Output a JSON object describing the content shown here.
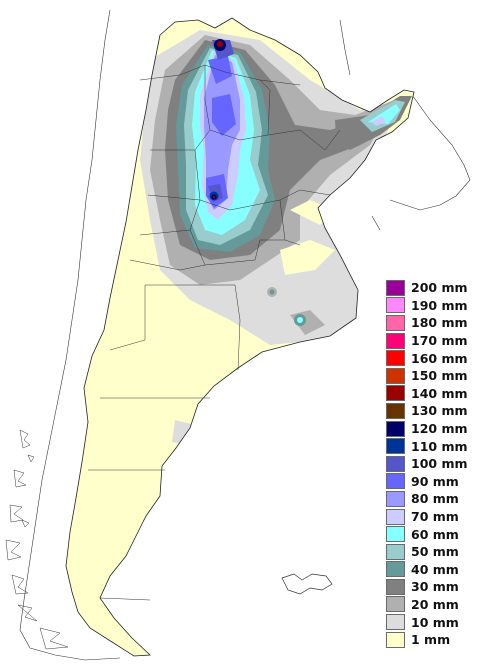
{
  "legend": {
    "items": [
      {
        "label": "200 mm",
        "color": "#990099"
      },
      {
        "label": "190 mm",
        "color": "#ff88ff"
      },
      {
        "label": "180 mm",
        "color": "#ff66aa"
      },
      {
        "label": "170 mm",
        "color": "#ff0077"
      },
      {
        "label": "160 mm",
        "color": "#ff0000"
      },
      {
        "label": "150 mm",
        "color": "#cc3300"
      },
      {
        "label": "140 mm",
        "color": "#990000"
      },
      {
        "label": "130 mm",
        "color": "#663300"
      },
      {
        "label": "120 mm",
        "color": "#000066"
      },
      {
        "label": "110 mm",
        "color": "#003399"
      },
      {
        "label": "100 mm",
        "color": "#5555cc"
      },
      {
        "label": "90 mm",
        "color": "#6666ff"
      },
      {
        "label": "80 mm",
        "color": "#9999ff"
      },
      {
        "label": "70 mm",
        "color": "#ccccff"
      },
      {
        "label": "60 mm",
        "color": "#88ffff"
      },
      {
        "label": "50 mm",
        "color": "#99cccc"
      },
      {
        "label": "40 mm",
        "color": "#669999"
      },
      {
        "label": "30 mm",
        "color": "#808080"
      },
      {
        "label": "20 mm",
        "color": "#b0b0b0"
      },
      {
        "label": "10 mm",
        "color": "#dddddd"
      },
      {
        "label": "1 mm",
        "color": "#ffffcc"
      }
    ]
  }
}
